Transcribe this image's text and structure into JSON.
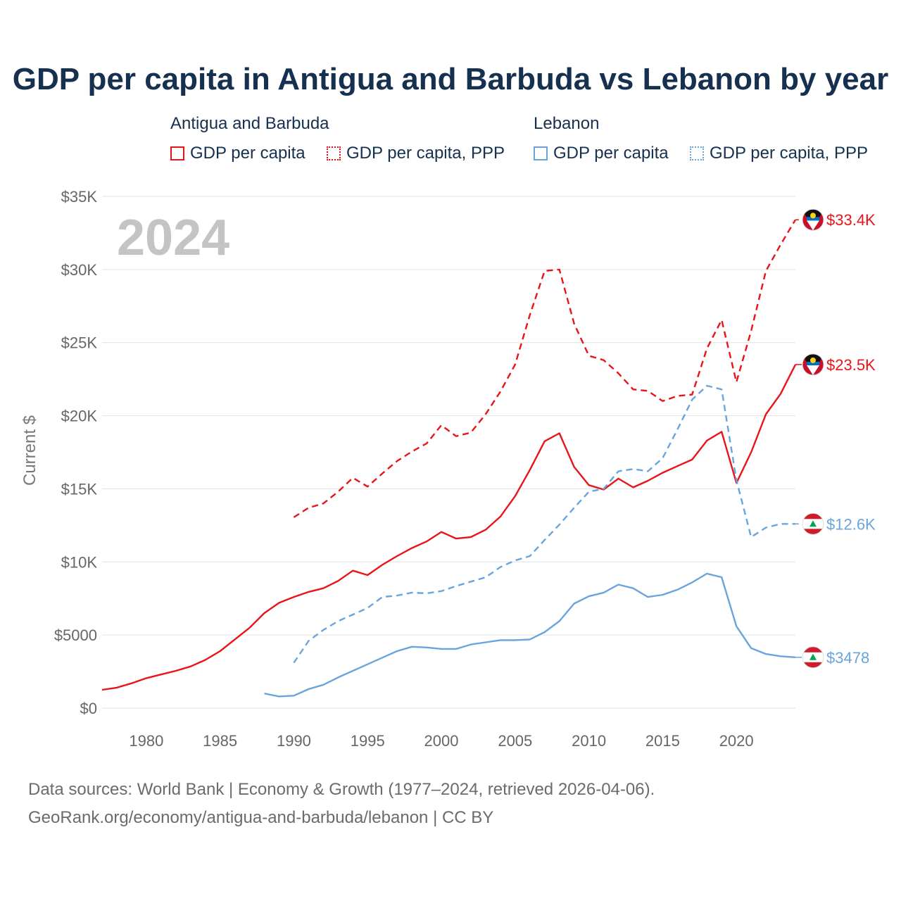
{
  "title": "GDP per capita in Antigua and Barbuda vs Lebanon by year",
  "legend": {
    "groups": [
      {
        "country": "Antigua and Barbuda",
        "color": "#e8141a",
        "items": [
          "GDP per capita",
          "GDP per capita, PPP"
        ]
      },
      {
        "country": "Lebanon",
        "color": "#6aa4dc",
        "items": [
          "GDP per capita",
          "GDP per capita, PPP"
        ]
      }
    ]
  },
  "year_watermark": "2024",
  "footer": {
    "source": "Data sources: World Bank | Economy & Growth (1977–2024, retrieved 2026-04-06).",
    "url": "GeoRank.org/economy/antigua-and-barbuda/lebanon | CC BY"
  },
  "chart_data": {
    "type": "line",
    "title": "GDP per capita in Antigua and Barbuda vs Lebanon by year",
    "ylabel": "Current $",
    "xlabel": "",
    "xlim": [
      1977,
      2024
    ],
    "ylim": [
      0,
      35000
    ],
    "x_ticks": [
      1980,
      1985,
      1990,
      1995,
      2000,
      2005,
      2010,
      2015,
      2020
    ],
    "y_ticks": [
      {
        "value": 0,
        "label": "$0"
      },
      {
        "value": 5000,
        "label": "$5000"
      },
      {
        "value": 10000,
        "label": "$10K"
      },
      {
        "value": 15000,
        "label": "$15K"
      },
      {
        "value": 20000,
        "label": "$20K"
      },
      {
        "value": 25000,
        "label": "$25K"
      },
      {
        "value": 30000,
        "label": "$30K"
      },
      {
        "value": 35000,
        "label": "$35K"
      }
    ],
    "series": [
      {
        "name": "Antigua and Barbuda GDP per capita",
        "color": "#e8141a",
        "dashed": false,
        "end_label": "$23.5K",
        "flag": "antigua",
        "x": [
          1977,
          1978,
          1979,
          1980,
          1981,
          1982,
          1983,
          1984,
          1985,
          1986,
          1987,
          1988,
          1989,
          1990,
          1991,
          1992,
          1993,
          1994,
          1995,
          1996,
          1997,
          1998,
          1999,
          2000,
          2001,
          2002,
          2003,
          2004,
          2005,
          2006,
          2007,
          2008,
          2009,
          2010,
          2011,
          2012,
          2013,
          2014,
          2015,
          2016,
          2017,
          2018,
          2019,
          2020,
          2021,
          2022,
          2023,
          2024
        ],
        "values": [
          1250,
          1400,
          1700,
          2050,
          2300,
          2550,
          2850,
          3300,
          3900,
          4700,
          5500,
          6500,
          7200,
          7600,
          7950,
          8200,
          8700,
          9400,
          9100,
          9800,
          10400,
          10950,
          11400,
          12050,
          11600,
          11700,
          12200,
          13100,
          14500,
          16300,
          18250,
          18800,
          16500,
          15250,
          14950,
          15700,
          15100,
          15550,
          16100,
          16550,
          17000,
          18300,
          18900,
          15400,
          17500,
          20100,
          21500,
          23500
        ]
      },
      {
        "name": "Antigua and Barbuda GDP per capita, PPP",
        "color": "#e8141a",
        "dashed": true,
        "end_label": "$33.4K",
        "flag": "antigua",
        "x": [
          1990,
          1991,
          1992,
          1993,
          1994,
          1995,
          1996,
          1997,
          1998,
          1999,
          2000,
          2001,
          2002,
          2003,
          2004,
          2005,
          2006,
          2007,
          2008,
          2009,
          2010,
          2011,
          2012,
          2013,
          2014,
          2015,
          2016,
          2017,
          2018,
          2019,
          2020,
          2021,
          2022,
          2023,
          2024
        ],
        "values": [
          13050,
          13700,
          14000,
          14800,
          15750,
          15150,
          16050,
          16900,
          17550,
          18100,
          19350,
          18600,
          18850,
          20100,
          21650,
          23500,
          26900,
          29900,
          30000,
          26300,
          24100,
          23800,
          22900,
          21800,
          21700,
          21000,
          21350,
          21450,
          24600,
          26550,
          22300,
          25800,
          29900,
          31700,
          33400
        ]
      },
      {
        "name": "Lebanon GDP per capita",
        "color": "#6aa4dc",
        "dashed": false,
        "end_label": "$3478",
        "flag": "lebanon",
        "x": [
          1988,
          1989,
          1990,
          1991,
          1992,
          1993,
          1994,
          1995,
          1996,
          1997,
          1998,
          1999,
          2000,
          2001,
          2002,
          2003,
          2004,
          2005,
          2006,
          2007,
          2008,
          2009,
          2010,
          2011,
          2012,
          2013,
          2014,
          2015,
          2016,
          2017,
          2018,
          2019,
          2020,
          2021,
          2022,
          2023,
          2024
        ],
        "values": [
          1000,
          800,
          850,
          1300,
          1600,
          2100,
          2550,
          3000,
          3450,
          3900,
          4200,
          4150,
          4050,
          4050,
          4350,
          4500,
          4650,
          4650,
          4700,
          5200,
          5950,
          7150,
          7650,
          7900,
          8450,
          8200,
          7600,
          7750,
          8100,
          8600,
          9200,
          8950,
          5600,
          4100,
          3700,
          3550,
          3478
        ]
      },
      {
        "name": "Lebanon GDP per capita, PPP",
        "color": "#6aa4dc",
        "dashed": true,
        "end_label": "$12.6K",
        "flag": "lebanon",
        "x": [
          1990,
          1991,
          1992,
          1993,
          1994,
          1995,
          1996,
          1997,
          1998,
          1999,
          2000,
          2001,
          2002,
          2003,
          2004,
          2005,
          2006,
          2007,
          2008,
          2009,
          2010,
          2011,
          2012,
          2013,
          2014,
          2015,
          2016,
          2017,
          2018,
          2019,
          2020,
          2021,
          2022,
          2023,
          2024
        ],
        "values": [
          3100,
          4600,
          5350,
          5950,
          6400,
          6850,
          7600,
          7700,
          7900,
          7850,
          8000,
          8350,
          8650,
          8950,
          9650,
          10100,
          10400,
          11500,
          12550,
          13700,
          14800,
          15000,
          16200,
          16350,
          16200,
          17100,
          19050,
          21100,
          22050,
          21800,
          15600,
          11700,
          12350,
          12600,
          12600
        ]
      }
    ]
  }
}
